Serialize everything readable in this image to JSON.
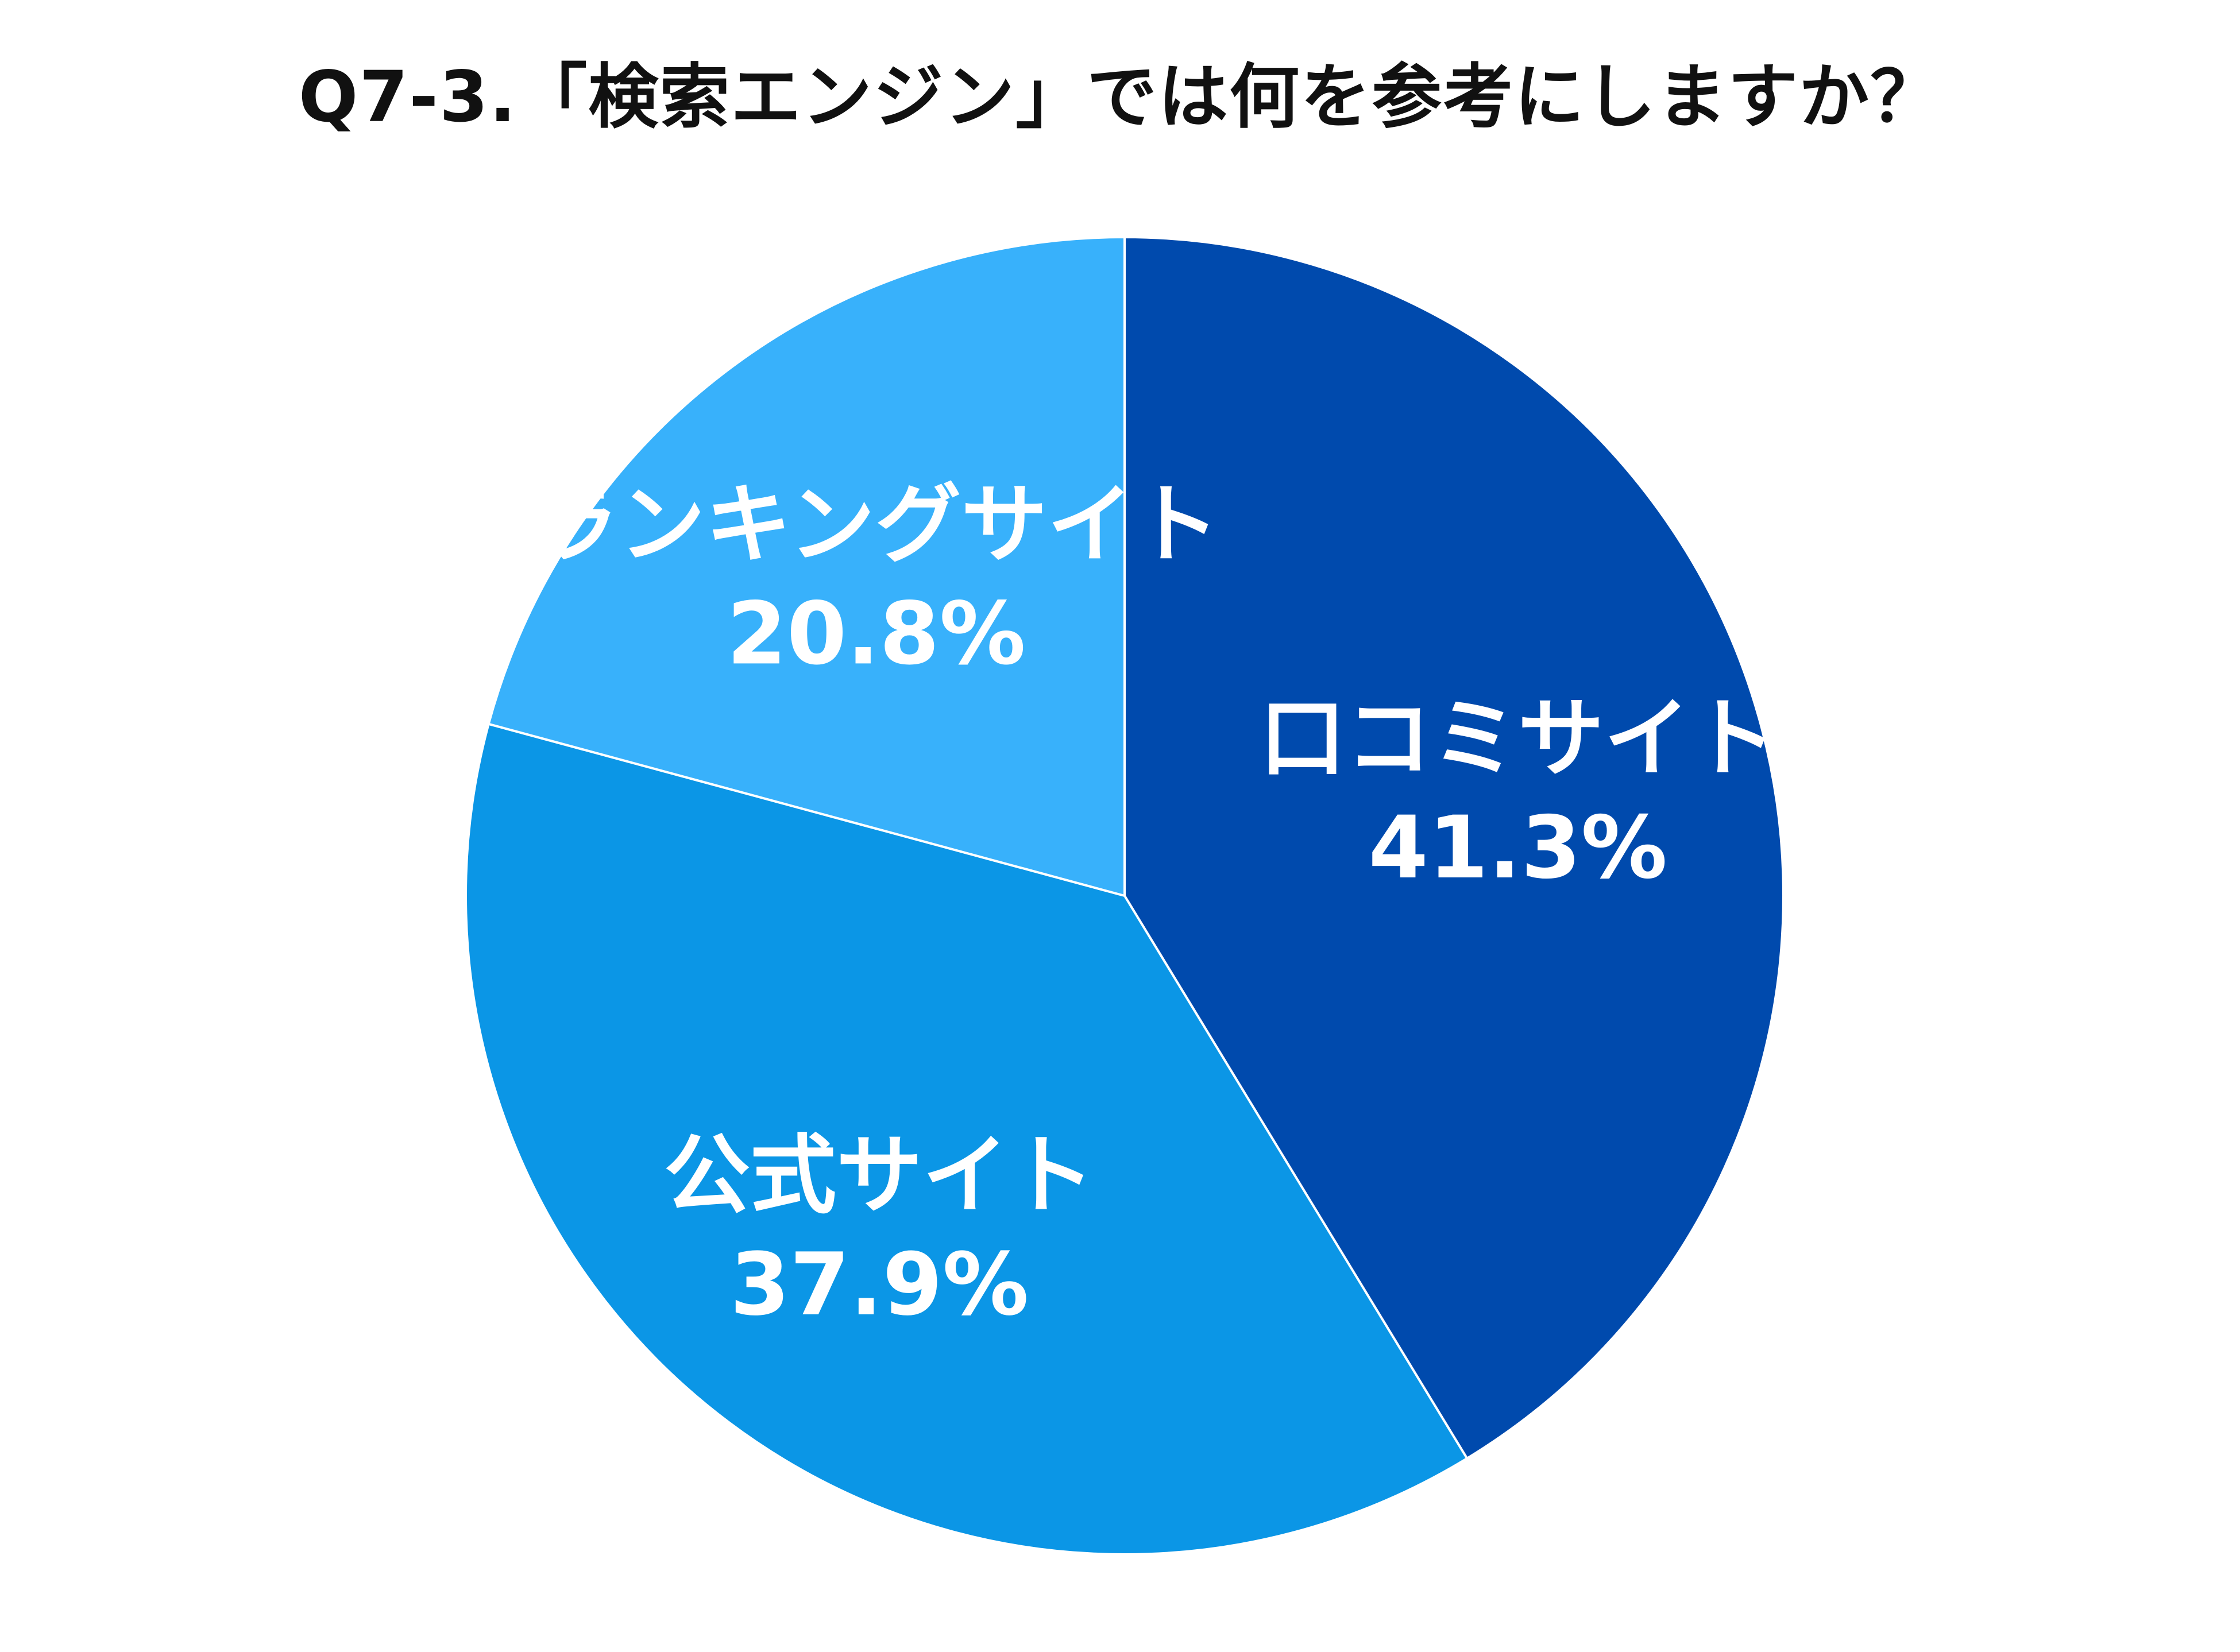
{
  "chart_data": {
    "type": "pie",
    "title": "Q7-3.「検索エンジン」では何を参考にしますか？",
    "slices": [
      {
        "label": "口コミサイト",
        "value": 41.3,
        "value_label": "41.3%",
        "color": "#004aad"
      },
      {
        "label": "公式サイト",
        "value": 37.9,
        "value_label": "37.9%",
        "color": "#0b96e6"
      },
      {
        "label": "ランキングサイト",
        "value": 20.8,
        "value_label": "20.8%",
        "color": "#38b1fb"
      }
    ],
    "start": "12 o'clock",
    "direction": "clockwise",
    "legend": "none"
  }
}
